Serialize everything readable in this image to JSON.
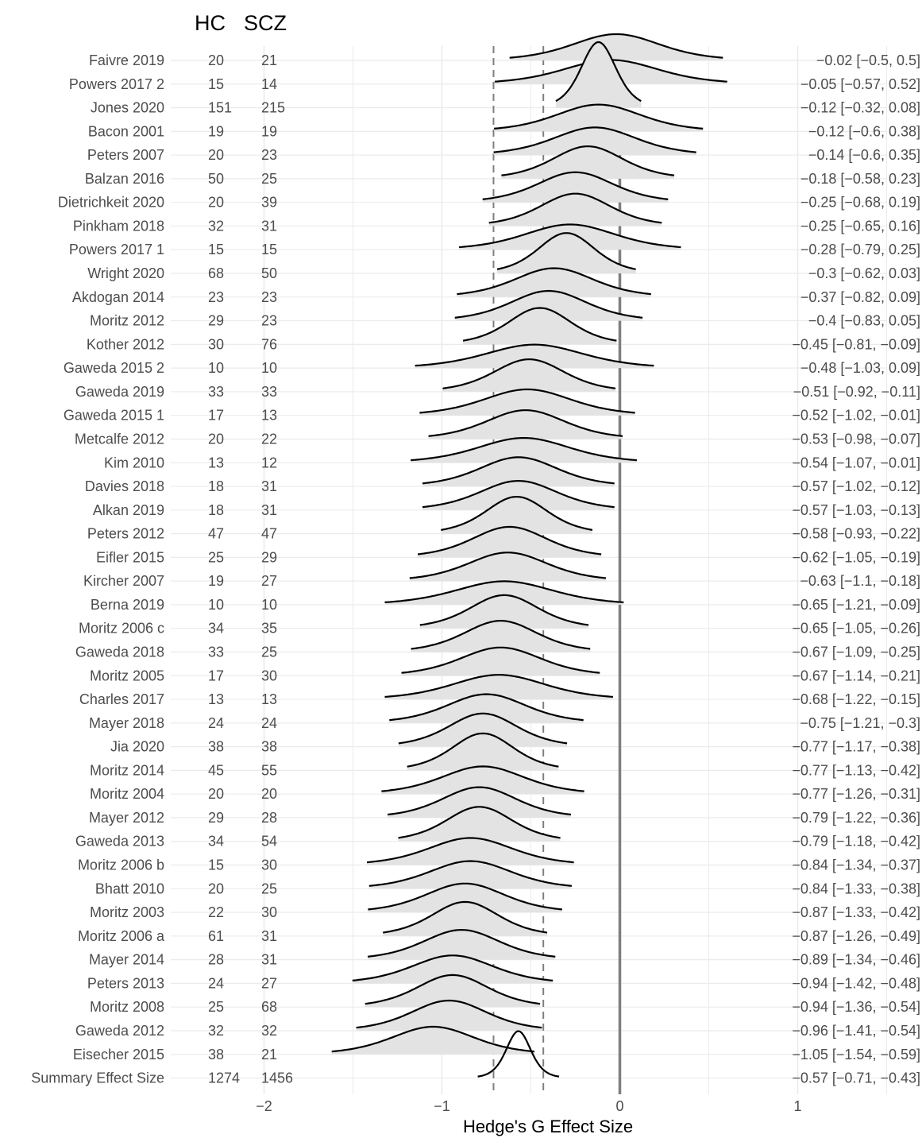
{
  "chart_data": {
    "type": "ridgeline",
    "xlabel": "Hedge's G Effect Size",
    "xlim": [
      -2.0,
      1.5
    ],
    "xticks": [
      -2,
      -1,
      0,
      1
    ],
    "xtick_labels": [
      "−2",
      "−1",
      "0",
      "1"
    ],
    "reference_lines": [
      {
        "x": 0,
        "style": "solid"
      },
      {
        "x": -0.71,
        "style": "dashed"
      },
      {
        "x": -0.43,
        "style": "dashed"
      }
    ],
    "columns": {
      "hc": "HC",
      "scz": "SCZ"
    },
    "colors": {
      "fill": "#e3e3e3",
      "curve": "#000000",
      "grid": "#ebebeb",
      "zero_line": "#7f7f7f",
      "dashed": "#7f7f7f",
      "text": "#4d4d4d"
    },
    "studies": [
      {
        "name": "Faivre 2019",
        "hc": "20",
        "scz": "21",
        "g": -0.02,
        "lo": -0.5,
        "hi": 0.5,
        "label": "−0.02 [−0.5, 0.5]"
      },
      {
        "name": "Powers 2017 2",
        "hc": "15",
        "scz": "14",
        "g": -0.05,
        "lo": -0.57,
        "hi": 0.52,
        "label": "−0.05 [−0.57, 0.52]"
      },
      {
        "name": "Jones 2020",
        "hc": "151",
        "scz": "215",
        "g": -0.12,
        "lo": -0.32,
        "hi": 0.08,
        "label": "−0.12 [−0.32, 0.08]"
      },
      {
        "name": "Bacon 2001",
        "hc": "19",
        "scz": "19",
        "g": -0.12,
        "lo": -0.6,
        "hi": 0.38,
        "label": "−0.12 [−0.6, 0.38]"
      },
      {
        "name": "Peters 2007",
        "hc": "20",
        "scz": "23",
        "g": -0.14,
        "lo": -0.6,
        "hi": 0.35,
        "label": "−0.14 [−0.6, 0.35]"
      },
      {
        "name": "Balzan 2016",
        "hc": "50",
        "scz": "25",
        "g": -0.18,
        "lo": -0.58,
        "hi": 0.23,
        "label": "−0.18 [−0.58, 0.23]"
      },
      {
        "name": "Dietrichkeit 2020",
        "hc": "20",
        "scz": "39",
        "g": -0.25,
        "lo": -0.68,
        "hi": 0.19,
        "label": "−0.25 [−0.68, 0.19]"
      },
      {
        "name": "Pinkham 2018",
        "hc": "32",
        "scz": "31",
        "g": -0.25,
        "lo": -0.65,
        "hi": 0.16,
        "label": "−0.25 [−0.65, 0.16]"
      },
      {
        "name": "Powers 2017 1",
        "hc": "15",
        "scz": "15",
        "g": -0.28,
        "lo": -0.79,
        "hi": 0.25,
        "label": "−0.28 [−0.79, 0.25]"
      },
      {
        "name": "Wright 2020",
        "hc": "68",
        "scz": "50",
        "g": -0.3,
        "lo": -0.62,
        "hi": 0.03,
        "label": "−0.3 [−0.62, 0.03]"
      },
      {
        "name": "Akdogan 2014",
        "hc": "23",
        "scz": "23",
        "g": -0.37,
        "lo": -0.82,
        "hi": 0.09,
        "label": "−0.37 [−0.82, 0.09]"
      },
      {
        "name": "Moritz 2012",
        "hc": "29",
        "scz": "23",
        "g": -0.4,
        "lo": -0.83,
        "hi": 0.05,
        "label": "−0.4 [−0.83, 0.05]"
      },
      {
        "name": "Kother 2012",
        "hc": "30",
        "scz": "76",
        "g": -0.45,
        "lo": -0.81,
        "hi": -0.09,
        "label": "−0.45 [−0.81, −0.09]"
      },
      {
        "name": "Gaweda 2015 2",
        "hc": "10",
        "scz": "10",
        "g": -0.48,
        "lo": -1.03,
        "hi": 0.09,
        "label": "−0.48 [−1.03, 0.09]"
      },
      {
        "name": "Gaweda 2019",
        "hc": "33",
        "scz": "33",
        "g": -0.51,
        "lo": -0.92,
        "hi": -0.11,
        "label": "−0.51 [−0.92, −0.11]"
      },
      {
        "name": "Gaweda 2015 1",
        "hc": "17",
        "scz": "13",
        "g": -0.52,
        "lo": -1.02,
        "hi": -0.01,
        "label": "−0.52 [−1.02, −0.01]"
      },
      {
        "name": "Metcalfe 2012",
        "hc": "20",
        "scz": "22",
        "g": -0.53,
        "lo": -0.98,
        "hi": -0.07,
        "label": "−0.53 [−0.98, −0.07]"
      },
      {
        "name": "Kim 2010",
        "hc": "13",
        "scz": "12",
        "g": -0.54,
        "lo": -1.07,
        "hi": -0.01,
        "label": "−0.54 [−1.07, −0.01]"
      },
      {
        "name": "Davies 2018",
        "hc": "18",
        "scz": "31",
        "g": -0.57,
        "lo": -1.02,
        "hi": -0.12,
        "label": "−0.57 [−1.02, −0.12]"
      },
      {
        "name": "Alkan 2019",
        "hc": "18",
        "scz": "31",
        "g": -0.57,
        "lo": -1.03,
        "hi": -0.13,
        "label": "−0.57 [−1.03, −0.13]"
      },
      {
        "name": "Peters 2012",
        "hc": "47",
        "scz": "47",
        "g": -0.58,
        "lo": -0.93,
        "hi": -0.22,
        "label": "−0.58 [−0.93, −0.22]"
      },
      {
        "name": "Eifler 2015",
        "hc": "25",
        "scz": "29",
        "g": -0.62,
        "lo": -1.05,
        "hi": -0.19,
        "label": "−0.62 [−1.05, −0.19]"
      },
      {
        "name": "Kircher 2007",
        "hc": "19",
        "scz": "27",
        "g": -0.63,
        "lo": -1.1,
        "hi": -0.18,
        "label": "−0.63 [−1.1, −0.18]"
      },
      {
        "name": "Berna 2019",
        "hc": "10",
        "scz": "10",
        "g": -0.65,
        "lo": -1.21,
        "hi": -0.09,
        "label": "−0.65 [−1.21, −0.09]"
      },
      {
        "name": "Moritz 2006 c",
        "hc": "34",
        "scz": "35",
        "g": -0.65,
        "lo": -1.05,
        "hi": -0.26,
        "label": "−0.65 [−1.05, −0.26]"
      },
      {
        "name": "Gaweda 2018",
        "hc": "33",
        "scz": "25",
        "g": -0.67,
        "lo": -1.09,
        "hi": -0.25,
        "label": "−0.67 [−1.09, −0.25]"
      },
      {
        "name": "Moritz 2005",
        "hc": "17",
        "scz": "30",
        "g": -0.67,
        "lo": -1.14,
        "hi": -0.21,
        "label": "−0.67 [−1.14, −0.21]"
      },
      {
        "name": "Charles 2017",
        "hc": "13",
        "scz": "13",
        "g": -0.68,
        "lo": -1.22,
        "hi": -0.15,
        "label": "−0.68 [−1.22, −0.15]"
      },
      {
        "name": "Mayer 2018",
        "hc": "24",
        "scz": "24",
        "g": -0.75,
        "lo": -1.21,
        "hi": -0.3,
        "label": "−0.75 [−1.21, −0.3]"
      },
      {
        "name": "Jia 2020",
        "hc": "38",
        "scz": "38",
        "g": -0.77,
        "lo": -1.17,
        "hi": -0.38,
        "label": "−0.77 [−1.17, −0.38]"
      },
      {
        "name": "Moritz 2014",
        "hc": "45",
        "scz": "55",
        "g": -0.77,
        "lo": -1.13,
        "hi": -0.42,
        "label": "−0.77 [−1.13, −0.42]"
      },
      {
        "name": "Moritz 2004",
        "hc": "20",
        "scz": "20",
        "g": -0.77,
        "lo": -1.26,
        "hi": -0.31,
        "label": "−0.77 [−1.26, −0.31]"
      },
      {
        "name": "Mayer 2012",
        "hc": "29",
        "scz": "28",
        "g": -0.79,
        "lo": -1.22,
        "hi": -0.36,
        "label": "−0.79 [−1.22, −0.36]"
      },
      {
        "name": "Gaweda 2013",
        "hc": "34",
        "scz": "54",
        "g": -0.79,
        "lo": -1.18,
        "hi": -0.42,
        "label": "−0.79 [−1.18, −0.42]"
      },
      {
        "name": "Moritz 2006 b",
        "hc": "15",
        "scz": "30",
        "g": -0.84,
        "lo": -1.34,
        "hi": -0.37,
        "label": "−0.84 [−1.34, −0.37]"
      },
      {
        "name": "Bhatt 2010",
        "hc": "20",
        "scz": "25",
        "g": -0.84,
        "lo": -1.33,
        "hi": -0.38,
        "label": "−0.84 [−1.33, −0.38]"
      },
      {
        "name": "Moritz 2003",
        "hc": "22",
        "scz": "30",
        "g": -0.87,
        "lo": -1.33,
        "hi": -0.42,
        "label": "−0.87 [−1.33, −0.42]"
      },
      {
        "name": "Moritz 2006 a",
        "hc": "61",
        "scz": "31",
        "g": -0.87,
        "lo": -1.26,
        "hi": -0.49,
        "label": "−0.87 [−1.26, −0.49]"
      },
      {
        "name": "Mayer 2014",
        "hc": "28",
        "scz": "31",
        "g": -0.89,
        "lo": -1.34,
        "hi": -0.46,
        "label": "−0.89 [−1.34, −0.46]"
      },
      {
        "name": "Peters 2013",
        "hc": "24",
        "scz": "27",
        "g": -0.94,
        "lo": -1.42,
        "hi": -0.48,
        "label": "−0.94 [−1.42, −0.48]"
      },
      {
        "name": "Moritz 2008",
        "hc": "25",
        "scz": "68",
        "g": -0.94,
        "lo": -1.36,
        "hi": -0.54,
        "label": "−0.94 [−1.36, −0.54]"
      },
      {
        "name": "Gaweda 2012",
        "hc": "32",
        "scz": "32",
        "g": -0.96,
        "lo": -1.41,
        "hi": -0.54,
        "label": "−0.96 [−1.41, −0.54]"
      },
      {
        "name": "Eisecher 2015",
        "hc": "38",
        "scz": "21",
        "g": -1.05,
        "lo": -1.54,
        "hi": -0.59,
        "label": "−1.05 [−1.54, −0.59]"
      },
      {
        "name": "Summary Effect Size",
        "hc": "1274",
        "scz": "1456",
        "g": -0.57,
        "lo": -0.71,
        "hi": -0.43,
        "label": "−0.57 [−0.71, −0.43]",
        "summary": true
      }
    ]
  }
}
